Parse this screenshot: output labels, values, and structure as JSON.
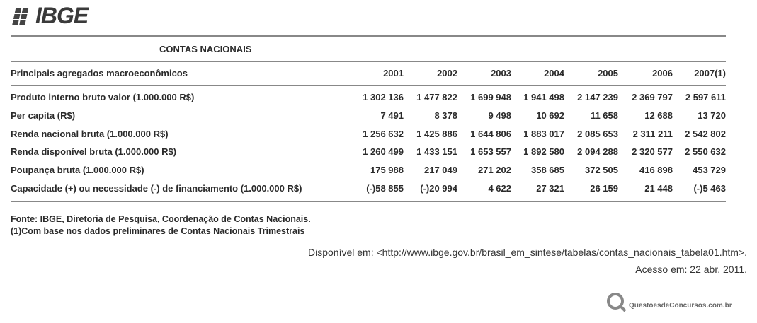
{
  "header": {
    "logo": "IBGE"
  },
  "table": {
    "title": "CONTAS NACIONAIS",
    "columns": [
      "Principais agregados macroeconômicos",
      "2001",
      "2002",
      "2003",
      "2004",
      "2005",
      "2006",
      "2007(1)"
    ],
    "rows": [
      [
        "Produto interno bruto valor (1.000.000 R$)",
        "1 302 136",
        "1 477 822",
        "1 699 948",
        "1 941 498",
        "2 147 239",
        "2 369 797",
        "2 597 611"
      ],
      [
        "Per capita (R$)",
        "7 491",
        "8 378",
        "9 498",
        "10 692",
        "11 658",
        "12 688",
        "13 720"
      ],
      [
        "Renda nacional bruta (1.000.000 R$)",
        "1 256 632",
        "1 425 886",
        "1 644 806",
        "1 883 017",
        "2 085 653",
        "2 311 211",
        "2 542 802"
      ],
      [
        "Renda disponível bruta (1.000.000 R$)",
        "1 260 499",
        "1 433 151",
        "1 653 557",
        "1 892 580",
        "2 094 288",
        "2 320 577",
        "2 550 632"
      ],
      [
        "Poupança bruta (1.000.000 R$)",
        "175 988",
        "217 049",
        "271 202",
        "358 685",
        "372 505",
        "416 898",
        "453 729"
      ],
      [
        "Capacidade (+) ou necessidade (-) de financiamento (1.000.000 R$)",
        "(-)58 855",
        "(-)20 994",
        "4 622",
        "27 321",
        "26 159",
        "21 448",
        "(-)5 463"
      ]
    ]
  },
  "footnotes": [
    "Fonte: IBGE, Diretoria de Pesquisa, Coordenação de Contas Nacionais.",
    "(1)Com base nos dados preliminares de Contas Nacionais Trimestrais"
  ],
  "source": [
    "Disponível em: <http://www.ibge.gov.br/brasil_em_sintese/tabelas/contas_nacionais_tabela01.htm>.",
    "Acesso em: 22 abr. 2011."
  ],
  "watermark": "QuestoesdeConcursos.com.br"
}
